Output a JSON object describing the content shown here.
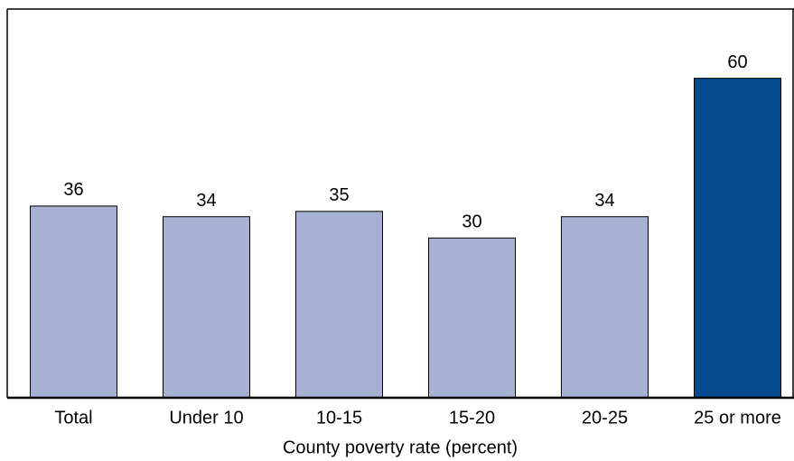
{
  "chart_data": {
    "type": "bar",
    "x_label": "County poverty rate (percent)",
    "categories": [
      "Total",
      "Under 10",
      "10-15",
      "15-20",
      "20-25",
      "25 or more"
    ],
    "values": [
      36,
      34,
      35,
      30,
      34,
      60
    ],
    "colors": [
      "#a6b1d4",
      "#a6b1d4",
      "#a6b1d4",
      "#a6b1d4",
      "#a6b1d4",
      "#034a8f"
    ],
    "ylim": [
      0,
      73
    ]
  }
}
